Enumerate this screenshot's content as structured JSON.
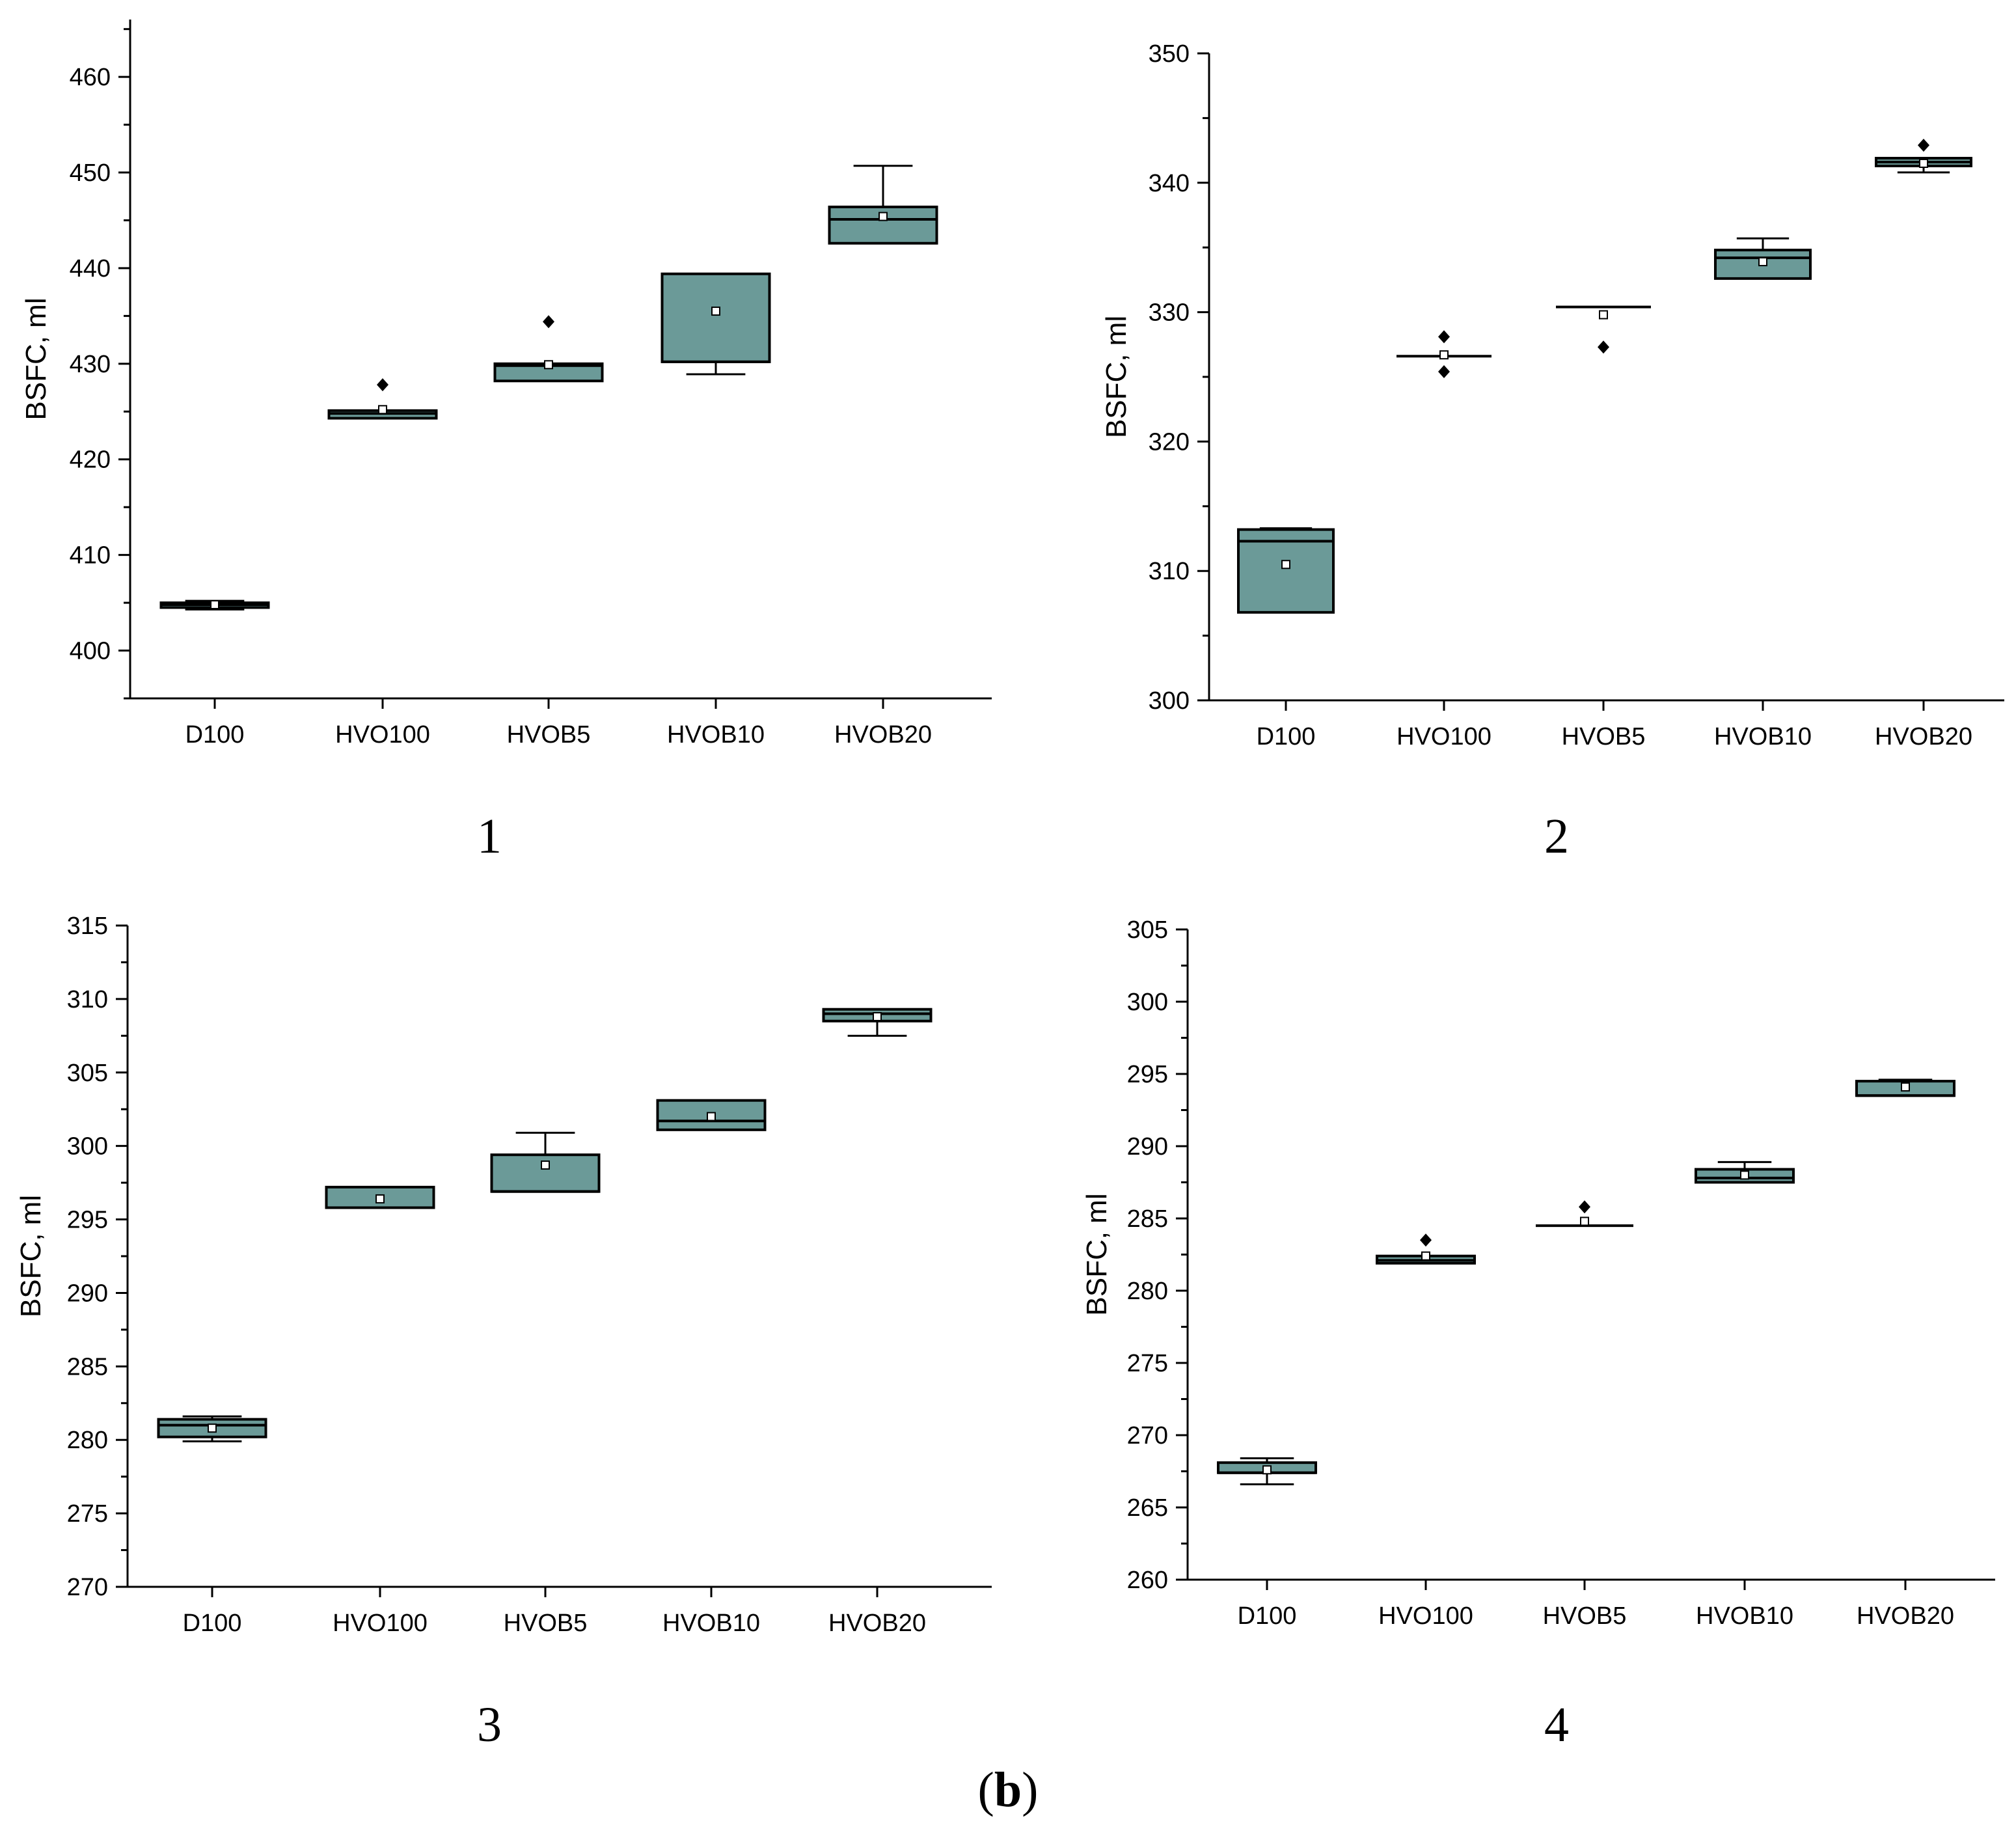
{
  "figure_label": {
    "open": "(",
    "letter": "b",
    "close": ")"
  },
  "colors": {
    "box_fill": "#6b9a98",
    "stroke": "#000000",
    "mean_fill": "#ffffff"
  },
  "chart_data": [
    {
      "type": "box",
      "panel_label": "1",
      "ylabel": "BSFC, ml",
      "xlabel": "",
      "categories": [
        "D100",
        "HVO100",
        "HVOB5",
        "HVOB10",
        "HVOB20"
      ],
      "ylim": [
        395,
        466
      ],
      "yticks": [
        400,
        410,
        420,
        430,
        440,
        450,
        460
      ],
      "minor_step": 5,
      "boxes": [
        {
          "category": "D100",
          "q1": 404.5,
          "median": 404.8,
          "q3": 405.0,
          "whisker_low": 404.3,
          "whisker_high": 405.2,
          "mean": 404.8,
          "outliers": []
        },
        {
          "category": "HVO100",
          "q1": 424.3,
          "median": 424.8,
          "q3": 425.1,
          "whisker_low": 424.3,
          "whisker_high": 425.1,
          "mean": 425.2,
          "outliers": [
            427.8
          ]
        },
        {
          "category": "HVOB5",
          "q1": 428.2,
          "median": 429.8,
          "q3": 430.0,
          "whisker_low": 428.2,
          "whisker_high": 430.0,
          "mean": 429.9,
          "outliers": [
            434.4
          ]
        },
        {
          "category": "HVOB10",
          "q1": 430.2,
          "median": 430.2,
          "q3": 439.4,
          "whisker_low": 428.9,
          "whisker_high": 439.4,
          "mean": 435.5,
          "outliers": []
        },
        {
          "category": "HVOB20",
          "q1": 442.6,
          "median": 445.1,
          "q3": 446.4,
          "whisker_low": 442.6,
          "whisker_high": 450.7,
          "mean": 445.4,
          "outliers": []
        }
      ]
    },
    {
      "type": "box",
      "panel_label": "2",
      "ylabel": "BSFC, ml",
      "xlabel": "",
      "categories": [
        "D100",
        "HVO100",
        "HVOB5",
        "HVOB10",
        "HVOB20"
      ],
      "ylim": [
        300,
        350
      ],
      "yticks": [
        300,
        310,
        320,
        330,
        340,
        350
      ],
      "minor_step": 5,
      "boxes": [
        {
          "category": "D100",
          "q1": 306.8,
          "median": 312.3,
          "q3": 313.2,
          "whisker_low": 306.8,
          "whisker_high": 313.3,
          "mean": 310.5,
          "outliers": []
        },
        {
          "category": "HVO100",
          "q1": 326.6,
          "median": 326.6,
          "q3": 326.6,
          "whisker_low": 326.6,
          "whisker_high": 326.6,
          "mean": 326.7,
          "outliers": [
            328.1,
            325.4
          ]
        },
        {
          "category": "HVOB5",
          "q1": 330.4,
          "median": 330.4,
          "q3": 330.4,
          "whisker_low": 330.4,
          "whisker_high": 330.4,
          "mean": 329.8,
          "outliers": [
            327.3
          ]
        },
        {
          "category": "HVOB10",
          "q1": 332.6,
          "median": 334.2,
          "q3": 334.8,
          "whisker_low": 332.6,
          "whisker_high": 335.7,
          "mean": 333.9,
          "outliers": []
        },
        {
          "category": "HVOB20",
          "q1": 341.3,
          "median": 341.6,
          "q3": 341.9,
          "whisker_low": 340.8,
          "whisker_high": 341.9,
          "mean": 341.5,
          "outliers": [
            342.9
          ]
        }
      ]
    },
    {
      "type": "box",
      "panel_label": "3",
      "ylabel": "BSFC, ml",
      "xlabel": "",
      "categories": [
        "D100",
        "HVO100",
        "HVOB5",
        "HVOB10",
        "HVOB20"
      ],
      "ylim": [
        270,
        315
      ],
      "yticks": [
        270,
        275,
        280,
        285,
        290,
        295,
        300,
        305,
        310,
        315
      ],
      "minor_step": 2.5,
      "boxes": [
        {
          "category": "D100",
          "q1": 280.2,
          "median": 281.0,
          "q3": 281.4,
          "whisker_low": 279.9,
          "whisker_high": 281.6,
          "mean": 280.8,
          "outliers": []
        },
        {
          "category": "HVO100",
          "q1": 295.8,
          "median": 295.8,
          "q3": 297.2,
          "whisker_low": 295.8,
          "whisker_high": 297.2,
          "mean": 296.4,
          "outliers": []
        },
        {
          "category": "HVOB5",
          "q1": 296.9,
          "median": 296.9,
          "q3": 299.4,
          "whisker_low": 296.9,
          "whisker_high": 300.9,
          "mean": 298.7,
          "outliers": []
        },
        {
          "category": "HVOB10",
          "q1": 301.1,
          "median": 301.7,
          "q3": 303.1,
          "whisker_low": 301.1,
          "whisker_high": 303.1,
          "mean": 302.0,
          "outliers": []
        },
        {
          "category": "HVOB20",
          "q1": 308.5,
          "median": 309.0,
          "q3": 309.3,
          "whisker_low": 307.5,
          "whisker_high": 309.3,
          "mean": 308.8,
          "outliers": []
        }
      ]
    },
    {
      "type": "box",
      "panel_label": "4",
      "ylabel": "BSFC, ml",
      "xlabel": "",
      "categories": [
        "D100",
        "HVO100",
        "HVOB5",
        "HVOB10",
        "HVOB20"
      ],
      "ylim": [
        260,
        305
      ],
      "yticks": [
        260,
        265,
        270,
        275,
        280,
        285,
        290,
        295,
        300,
        305
      ],
      "minor_step": 2.5,
      "boxes": [
        {
          "category": "D100",
          "q1": 267.4,
          "median": 267.4,
          "q3": 268.1,
          "whisker_low": 266.6,
          "whisker_high": 268.4,
          "mean": 267.6,
          "outliers": []
        },
        {
          "category": "HVO100",
          "q1": 281.9,
          "median": 282.1,
          "q3": 282.4,
          "whisker_low": 281.9,
          "whisker_high": 282.4,
          "mean": 282.4,
          "outliers": [
            283.5
          ]
        },
        {
          "category": "HVOB5",
          "q1": 284.5,
          "median": 284.5,
          "q3": 284.5,
          "whisker_low": 284.5,
          "whisker_high": 284.5,
          "mean": 284.8,
          "outliers": [
            285.8
          ]
        },
        {
          "category": "HVOB10",
          "q1": 287.5,
          "median": 287.8,
          "q3": 288.4,
          "whisker_low": 287.5,
          "whisker_high": 288.9,
          "mean": 288.0,
          "outliers": []
        },
        {
          "category": "HVOB20",
          "q1": 293.5,
          "median": 293.5,
          "q3": 294.5,
          "whisker_low": 293.5,
          "whisker_high": 294.6,
          "mean": 294.1,
          "outliers": []
        }
      ]
    }
  ]
}
